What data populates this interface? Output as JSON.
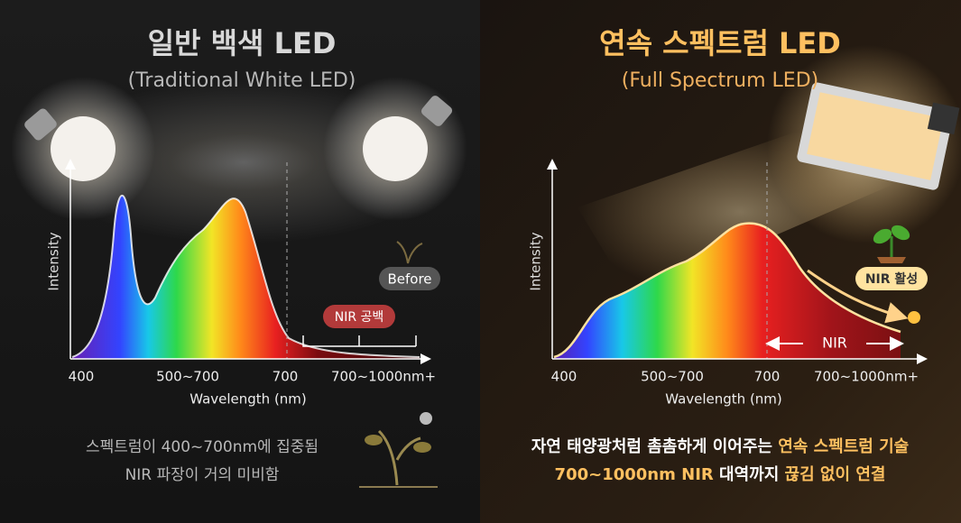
{
  "left": {
    "title": "일반 백색 LED",
    "subtitle": "(Traditional White LED)",
    "y_label": "Intensity",
    "x_labels": [
      "400",
      "500~700",
      "700",
      "700~1000nm+"
    ],
    "x_title": "Wavelength (nm)",
    "badge_before": "Before",
    "badge_gap": "NIR 공백",
    "caption": [
      "스펙트럼이 400~700nm에 집중됨",
      "NIR 파장이 거의 미비함"
    ]
  },
  "right": {
    "title": "연속 스펙트럼 LED",
    "subtitle": "(Full Spectrum LED)",
    "y_label": "Intensity",
    "x_labels": [
      "400",
      "500~700",
      "700",
      "700~1000nm+"
    ],
    "x_title": "Wavelength (nm)",
    "badge_active": "NIR 활성",
    "nir_label": "NIR",
    "caption": [
      [
        "자연 태양광처럼 촘촘하게 이어주는 ",
        "연속 스펙트럼 기술"
      ],
      [
        "700~1000nm NIR",
        " 대역까지 ",
        "끊김 없이 연결"
      ]
    ]
  }
}
